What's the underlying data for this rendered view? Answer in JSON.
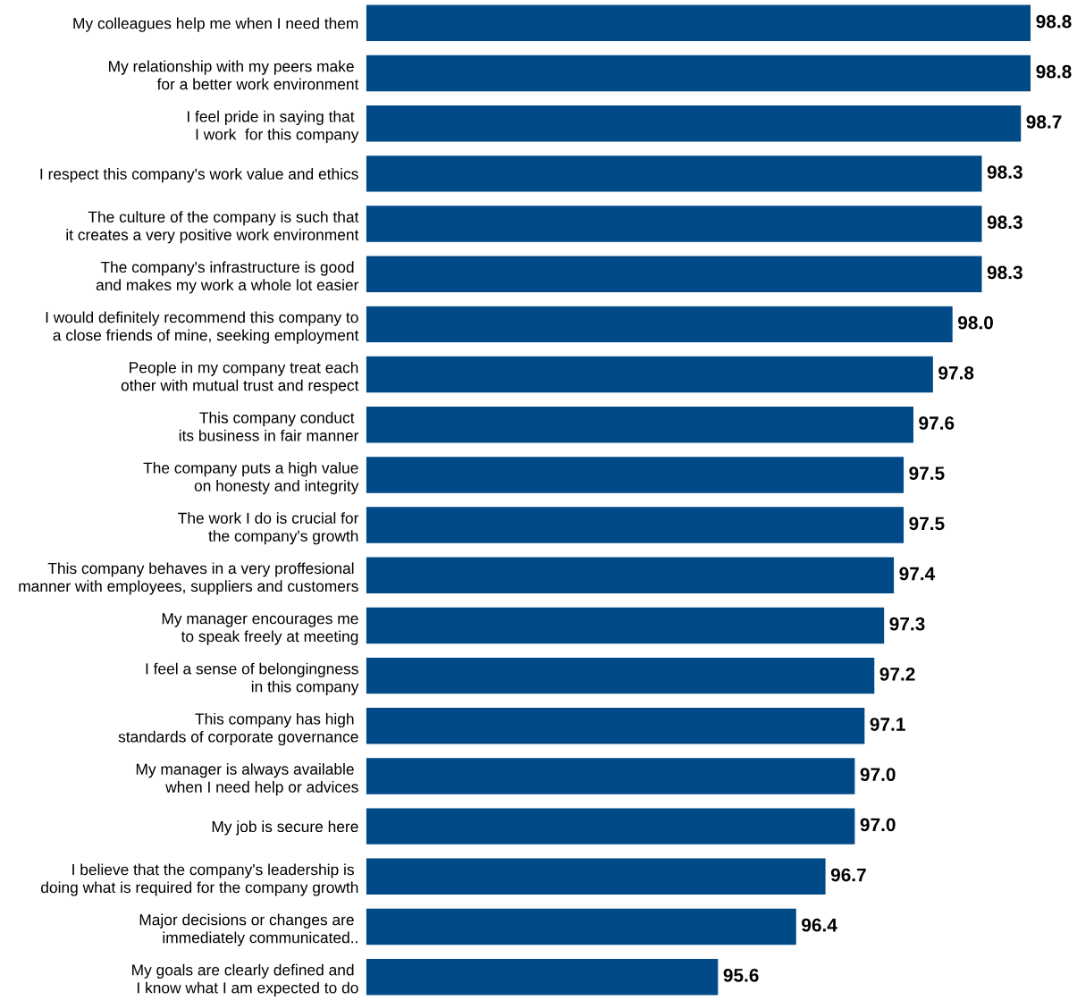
{
  "chart_data": {
    "type": "bar",
    "orientation": "horizontal",
    "categories": [
      "My colleagues help me when I need them",
      "My relationship with my peers make \nfor a better work environment",
      "I feel pride in saying that \nI work  for this company",
      "I respect this company's work value and ethics",
      "The culture of the company is such that\nit creates a very positive work environment",
      "The company's infrastructure is good \nand makes my work a whole lot easier",
      "I would definitely recommend this company to\na close friends of mine, seeking employment",
      "People in my company treat each\nother with mutual trust and respect",
      "This company conduct \nits business in fair manner",
      "The company puts a high value\non honesty and integrity",
      "The work I do is crucial for\nthe company's growth",
      "This company behaves in a very proffesional \nmanner with employees, suppliers and customers",
      "My manager encourages me\nto speak freely at meeting",
      "I feel a sense of belongingness\nin this company",
      "This company has high \nstandards of corporate governance",
      "My manager is always available \nwhen I need help or advices",
      "My job is secure here",
      "I believe that the company's leadership is \ndoing what is required for the company growth",
      "Major decisions or changes are \nimmediately communicated..",
      "My goals are clearly defined and \nI know what I am expected to do"
    ],
    "values": [
      98.8,
      98.8,
      98.7,
      98.3,
      98.3,
      98.3,
      98.0,
      97.8,
      97.6,
      97.5,
      97.5,
      97.4,
      97.3,
      97.2,
      97.1,
      97.0,
      97.0,
      96.7,
      96.4,
      95.6
    ],
    "value_labels": [
      "98.8",
      "98.8",
      "98.7",
      "98.3",
      "98.3",
      "98.3",
      "98.0",
      "97.8",
      "97.6",
      "97.5",
      "97.5",
      "97.4",
      "97.3",
      "97.2",
      "97.1",
      "97.0",
      "97.0",
      "96.7",
      "96.4",
      "95.6"
    ],
    "color": "#004a87",
    "xlim": [
      92,
      98.8
    ],
    "tick_labels": "y",
    "grid": false,
    "legend": false
  }
}
